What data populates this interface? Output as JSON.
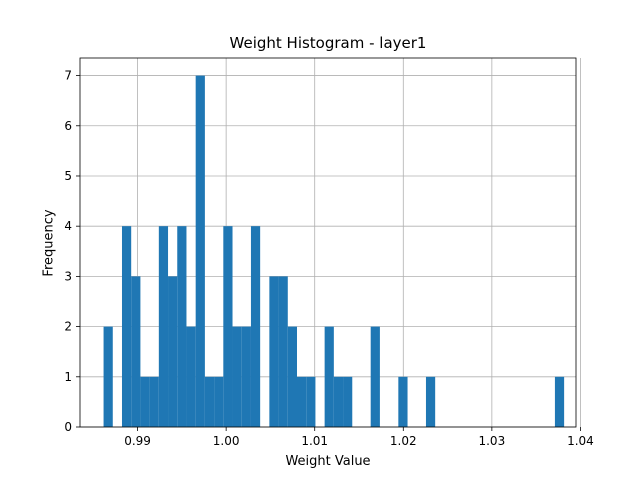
{
  "chart_data": {
    "type": "bar",
    "title": "Weight Histogram - layer1",
    "xlabel": "Weight Value",
    "ylabel": "Frequency",
    "xlim": [
      0.9835,
      1.0395
    ],
    "ylim": [
      0,
      7.35
    ],
    "grid": true,
    "bar_color": "#1f77b4",
    "bin_width": 0.00104,
    "bins": [
      {
        "x": 0.98616,
        "count": 2
      },
      {
        "x": 0.98824,
        "count": 4
      },
      {
        "x": 0.98928,
        "count": 3
      },
      {
        "x": 0.99032,
        "count": 1
      },
      {
        "x": 0.99136,
        "count": 1
      },
      {
        "x": 0.9924,
        "count": 4
      },
      {
        "x": 0.99344,
        "count": 3
      },
      {
        "x": 0.99448,
        "count": 4
      },
      {
        "x": 0.99552,
        "count": 2
      },
      {
        "x": 0.99656,
        "count": 7
      },
      {
        "x": 0.9976,
        "count": 1
      },
      {
        "x": 0.99864,
        "count": 1
      },
      {
        "x": 0.99968,
        "count": 4
      },
      {
        "x": 1.00072,
        "count": 2
      },
      {
        "x": 1.00176,
        "count": 2
      },
      {
        "x": 1.0028,
        "count": 4
      },
      {
        "x": 1.00488,
        "count": 3
      },
      {
        "x": 1.00592,
        "count": 3
      },
      {
        "x": 1.00696,
        "count": 2
      },
      {
        "x": 1.008,
        "count": 1
      },
      {
        "x": 1.00904,
        "count": 1
      },
      {
        "x": 1.01112,
        "count": 2
      },
      {
        "x": 1.01216,
        "count": 1
      },
      {
        "x": 1.0132,
        "count": 1
      },
      {
        "x": 1.01632,
        "count": 2
      },
      {
        "x": 1.01944,
        "count": 1
      },
      {
        "x": 1.02256,
        "count": 1
      },
      {
        "x": 1.03712,
        "count": 1
      }
    ],
    "xticks": [
      {
        "value": 0.99,
        "label": "0.99"
      },
      {
        "value": 1.0,
        "label": "1.00"
      },
      {
        "value": 1.01,
        "label": "1.01"
      },
      {
        "value": 1.02,
        "label": "1.02"
      },
      {
        "value": 1.03,
        "label": "1.03"
      },
      {
        "value": 1.04,
        "label": "1.04"
      }
    ],
    "yticks": [
      {
        "value": 0,
        "label": "0"
      },
      {
        "value": 1,
        "label": "1"
      },
      {
        "value": 2,
        "label": "2"
      },
      {
        "value": 3,
        "label": "3"
      },
      {
        "value": 4,
        "label": "4"
      },
      {
        "value": 5,
        "label": "5"
      },
      {
        "value": 6,
        "label": "6"
      },
      {
        "value": 7,
        "label": "7"
      }
    ]
  }
}
